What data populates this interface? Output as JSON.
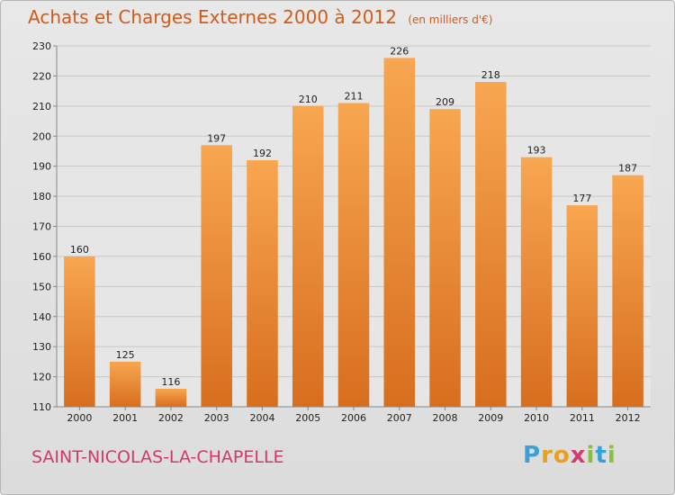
{
  "header": {
    "title": "Achats et Charges Externes 2000 à 2012",
    "subtitle": "(en milliers d'€)"
  },
  "footer": {
    "town": "SAINT-NICOLAS-LA-CHAPELLE",
    "logo": "Proxiti"
  },
  "colors": {
    "bar_light": "#f8a651",
    "bar_dark": "#d76e1e",
    "title": "#d45a1a",
    "town": "#d4386b"
  },
  "chart_data": {
    "type": "bar",
    "categories": [
      "2000",
      "2001",
      "2002",
      "2003",
      "2004",
      "2005",
      "2006",
      "2007",
      "2008",
      "2009",
      "2010",
      "2011",
      "2012"
    ],
    "values": [
      160,
      125,
      116,
      197,
      192,
      210,
      211,
      226,
      209,
      218,
      193,
      177,
      187
    ],
    "title": "Achats et Charges Externes 2000 à 2012",
    "xlabel": "",
    "ylabel": "",
    "ylim": [
      110,
      230
    ],
    "yticks": [
      110,
      120,
      130,
      140,
      150,
      160,
      170,
      180,
      190,
      200,
      210,
      220,
      230
    ],
    "grid": true,
    "legend": "none"
  }
}
